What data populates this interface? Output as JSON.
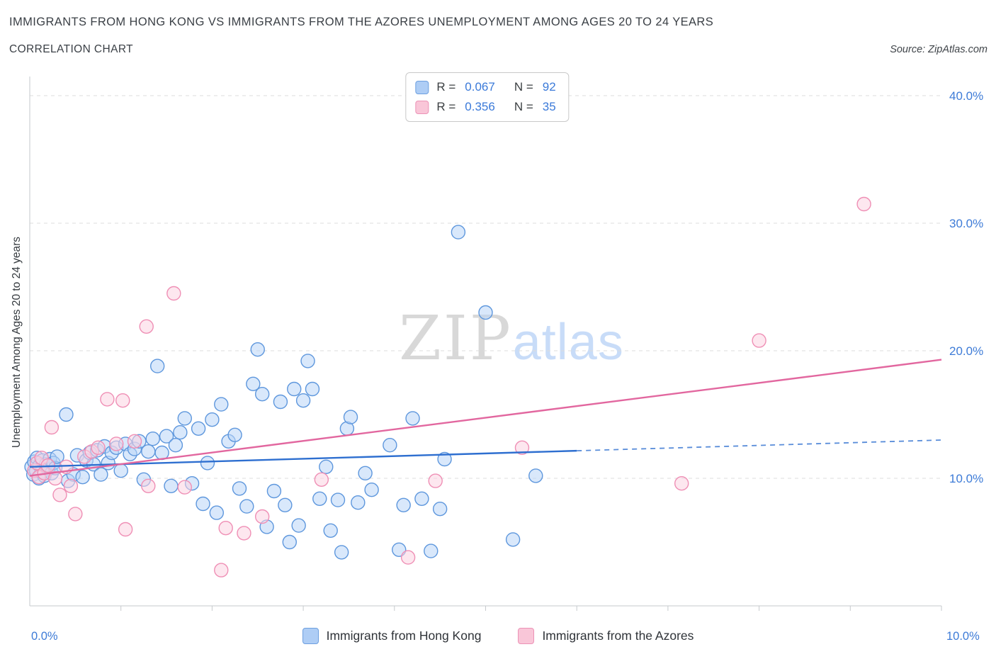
{
  "header": {
    "title": "IMMIGRANTS FROM HONG KONG VS IMMIGRANTS FROM THE AZORES UNEMPLOYMENT AMONG AGES 20 TO 24 YEARS",
    "subtitle": "CORRELATION CHART",
    "source": "Source: ZipAtlas.com"
  },
  "legend_box": {
    "rows": [
      {
        "r_label": "R =",
        "r_value": "0.067",
        "n_label": "N =",
        "n_value": "92",
        "fill": "#aecdf5",
        "stroke": "#6d9fdf"
      },
      {
        "r_label": "R =",
        "r_value": "0.356",
        "n_label": "N =",
        "n_value": "35",
        "fill": "#f9c6d8",
        "stroke": "#ec92b6"
      }
    ]
  },
  "axes": {
    "y_label": "Unemployment Among Ages 20 to 24 years",
    "x_min_label": "0.0%",
    "x_max_label": "10.0%"
  },
  "watermark": {
    "zip": "ZIP",
    "atlas": "atlas"
  },
  "bottom_legend": [
    {
      "label": "Immigrants from Hong Kong",
      "fill": "#aecdf5",
      "stroke": "#6d9fdf"
    },
    {
      "label": "Immigrants from the Azores",
      "fill": "#f9c6d8",
      "stroke": "#ec92b6"
    }
  ],
  "chart_data": {
    "type": "scatter",
    "title": "Immigrants from Hong Kong vs Immigrants from the Azores Unemployment Among Ages 20 to 24 years",
    "xlabel": "",
    "ylabel": "Unemployment Among Ages 20 to 24 years",
    "units": "percent",
    "xlim": [
      0,
      10
    ],
    "ylim": [
      0,
      41.5
    ],
    "x_ticks": [
      0,
      1,
      2,
      3,
      4,
      5,
      6,
      7,
      8,
      9,
      10
    ],
    "y_ticks": [
      10,
      20,
      30,
      40
    ],
    "y_tick_labels": [
      "10.0%",
      "20.0%",
      "30.0%",
      "40.0%"
    ],
    "grid": "horizontal-dashed",
    "legend_position": "top-center",
    "axis_label_color": "#3d7bd7",
    "grid_color": "#dcdcdc",
    "axis_color": "#c6cacd",
    "series": [
      {
        "id": "hongkong",
        "name": "Immigrants from Hong Kong",
        "R": 0.067,
        "N": 92,
        "fill": "#b9d5f8",
        "stroke": "#5e97dd",
        "points": [
          [
            0.02,
            10.9
          ],
          [
            0.04,
            10.3
          ],
          [
            0.05,
            11.3
          ],
          [
            0.07,
            10.6
          ],
          [
            0.08,
            11.6
          ],
          [
            0.1,
            10.0
          ],
          [
            0.11,
            11.0
          ],
          [
            0.13,
            10.5
          ],
          [
            0.14,
            11.4
          ],
          [
            0.16,
            10.2
          ],
          [
            0.18,
            11.1
          ],
          [
            0.2,
            10.7
          ],
          [
            0.22,
            11.5
          ],
          [
            0.24,
            10.4
          ],
          [
            0.26,
            11.2
          ],
          [
            0.28,
            10.8
          ],
          [
            0.3,
            11.7
          ],
          [
            0.4,
            15.0
          ],
          [
            0.42,
            9.8
          ],
          [
            0.48,
            10.3
          ],
          [
            0.52,
            11.8
          ],
          [
            0.58,
            10.1
          ],
          [
            0.62,
            11.4
          ],
          [
            0.66,
            12.0
          ],
          [
            0.7,
            11.1
          ],
          [
            0.74,
            12.2
          ],
          [
            0.78,
            10.3
          ],
          [
            0.82,
            12.5
          ],
          [
            0.86,
            11.2
          ],
          [
            0.9,
            12.0
          ],
          [
            0.95,
            12.4
          ],
          [
            1.0,
            10.6
          ],
          [
            1.05,
            12.7
          ],
          [
            1.1,
            11.9
          ],
          [
            1.15,
            12.3
          ],
          [
            1.2,
            12.9
          ],
          [
            1.25,
            9.9
          ],
          [
            1.3,
            12.1
          ],
          [
            1.35,
            13.1
          ],
          [
            1.4,
            18.8
          ],
          [
            1.45,
            12.0
          ],
          [
            1.5,
            13.3
          ],
          [
            1.55,
            9.4
          ],
          [
            1.6,
            12.6
          ],
          [
            1.65,
            13.6
          ],
          [
            1.7,
            14.7
          ],
          [
            1.78,
            9.6
          ],
          [
            1.85,
            13.9
          ],
          [
            1.9,
            8.0
          ],
          [
            1.95,
            11.2
          ],
          [
            2.0,
            14.6
          ],
          [
            2.05,
            7.3
          ],
          [
            2.1,
            15.8
          ],
          [
            2.18,
            12.9
          ],
          [
            2.25,
            13.4
          ],
          [
            2.3,
            9.2
          ],
          [
            2.38,
            7.8
          ],
          [
            2.45,
            17.4
          ],
          [
            2.5,
            20.1
          ],
          [
            2.55,
            16.6
          ],
          [
            2.6,
            6.2
          ],
          [
            2.68,
            9.0
          ],
          [
            2.75,
            16.0
          ],
          [
            2.8,
            7.9
          ],
          [
            2.85,
            5.0
          ],
          [
            2.9,
            17.0
          ],
          [
            2.95,
            6.3
          ],
          [
            3.0,
            16.1
          ],
          [
            3.05,
            19.2
          ],
          [
            3.1,
            17.0
          ],
          [
            3.18,
            8.4
          ],
          [
            3.25,
            10.9
          ],
          [
            3.3,
            5.9
          ],
          [
            3.38,
            8.3
          ],
          [
            3.42,
            4.2
          ],
          [
            3.48,
            13.9
          ],
          [
            3.52,
            14.8
          ],
          [
            3.6,
            8.1
          ],
          [
            3.68,
            10.4
          ],
          [
            3.75,
            9.1
          ],
          [
            3.95,
            12.6
          ],
          [
            4.05,
            4.4
          ],
          [
            4.1,
            7.9
          ],
          [
            4.2,
            14.7
          ],
          [
            4.3,
            8.4
          ],
          [
            4.4,
            4.3
          ],
          [
            4.5,
            7.6
          ],
          [
            4.55,
            11.5
          ],
          [
            4.7,
            29.3
          ],
          [
            5.0,
            23.0
          ],
          [
            5.3,
            5.2
          ],
          [
            5.55,
            10.2
          ]
        ]
      },
      {
        "id": "azores",
        "name": "Immigrants from the Azores",
        "R": 0.356,
        "N": 35,
        "fill": "#fbd3e1",
        "stroke": "#ef8fb5",
        "points": [
          [
            0.05,
            10.6
          ],
          [
            0.08,
            11.2
          ],
          [
            0.1,
            10.1
          ],
          [
            0.13,
            11.6
          ],
          [
            0.16,
            10.4
          ],
          [
            0.2,
            11.0
          ],
          [
            0.24,
            14.0
          ],
          [
            0.28,
            10.0
          ],
          [
            0.33,
            8.7
          ],
          [
            0.4,
            10.9
          ],
          [
            0.45,
            9.4
          ],
          [
            0.5,
            7.2
          ],
          [
            0.6,
            11.7
          ],
          [
            0.68,
            12.1
          ],
          [
            0.75,
            12.4
          ],
          [
            0.85,
            16.2
          ],
          [
            0.95,
            12.7
          ],
          [
            1.02,
            16.1
          ],
          [
            1.05,
            6.0
          ],
          [
            1.15,
            12.9
          ],
          [
            1.28,
            21.9
          ],
          [
            1.3,
            9.4
          ],
          [
            1.58,
            24.5
          ],
          [
            1.7,
            9.3
          ],
          [
            2.1,
            2.8
          ],
          [
            2.15,
            6.1
          ],
          [
            2.35,
            5.7
          ],
          [
            2.55,
            7.0
          ],
          [
            3.2,
            9.9
          ],
          [
            4.15,
            3.8
          ],
          [
            4.45,
            9.8
          ],
          [
            5.4,
            12.4
          ],
          [
            7.15,
            9.6
          ],
          [
            8.0,
            20.8
          ],
          [
            9.15,
            31.5
          ]
        ]
      }
    ],
    "trend_lines": [
      {
        "id": "hongkong",
        "name": "Immigrants from Hong Kong",
        "color": "#2e6fd0",
        "x_start": 0,
        "y_start": 10.9,
        "x_end": 10,
        "y_end": 13.0,
        "solid_until_x": 6.0
      },
      {
        "id": "azores",
        "name": "Immigrants from the Azores",
        "color": "#e2679f",
        "x_start": 0,
        "y_start": 10.2,
        "x_end": 10,
        "y_end": 19.3
      }
    ]
  }
}
